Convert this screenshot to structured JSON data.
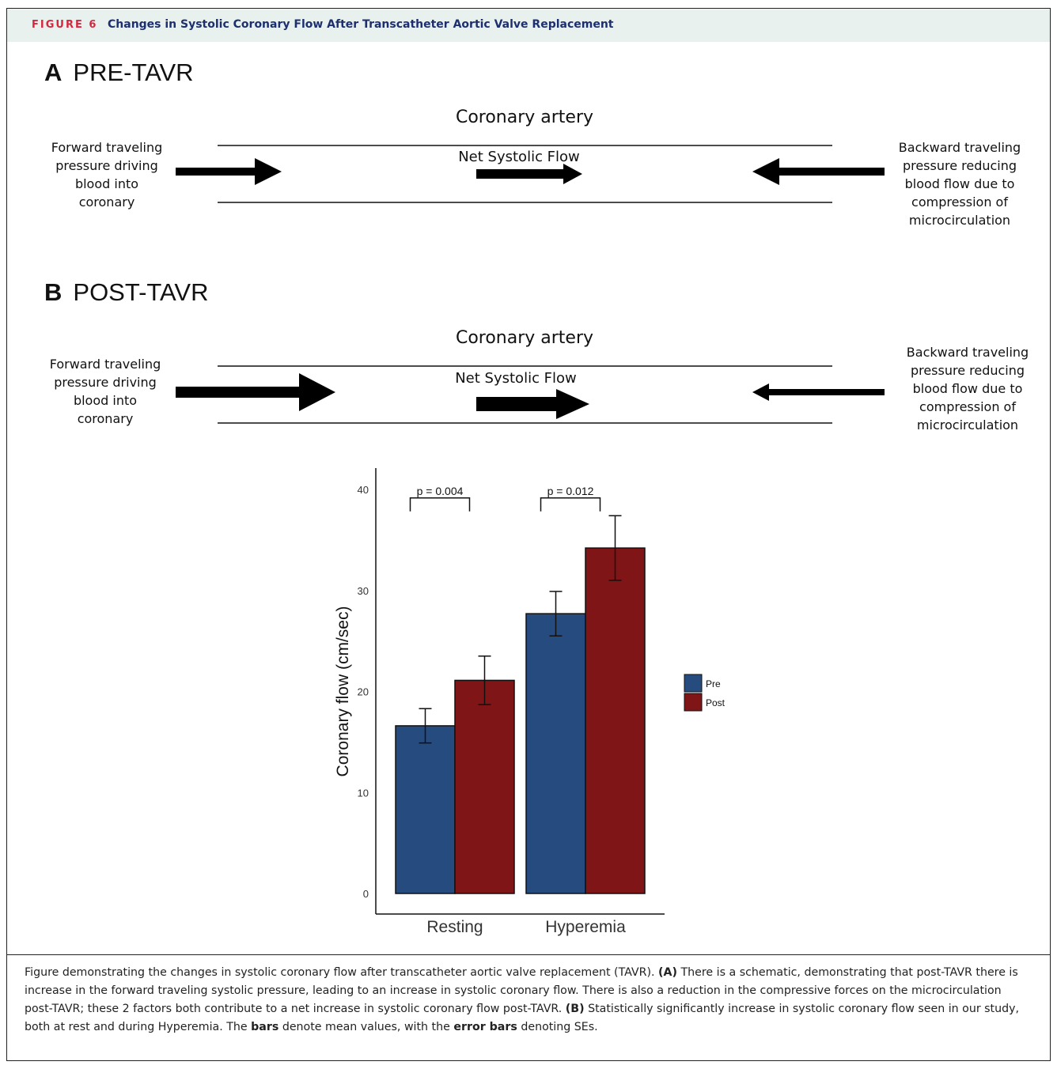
{
  "figure": {
    "label": "FIGURE 6",
    "title": "Changes in Systolic Coronary Flow After Transcatheter Aortic Valve Replacement"
  },
  "panel_a": {
    "letter": "A",
    "title": "PRE-TAVR",
    "artery_label": "Coronary artery",
    "net_flow_label": "Net Systolic Flow",
    "forward_lines": [
      "Forward traveling",
      "pressure driving",
      "blood into",
      "coronary"
    ],
    "backward_lines": [
      "Backward traveling",
      "pressure reducing",
      "blood flow due to",
      "compression of",
      "microcirculation"
    ]
  },
  "panel_b": {
    "letter": "B",
    "title": "POST-TAVR",
    "artery_label": "Coronary artery",
    "net_flow_label": "Net Systolic Flow",
    "forward_lines": [
      "Forward traveling",
      "pressure driving",
      "blood into",
      "coronary"
    ],
    "backward_lines": [
      "Backward traveling",
      "pressure reducing",
      "blood flow due to",
      "compression of",
      "microcirculation"
    ]
  },
  "chart_data": {
    "type": "bar",
    "categories": [
      "Resting",
      "Hyperemia"
    ],
    "ylabel": "Coronary flow (cm/sec)",
    "xlabel": "",
    "ylim": [
      0,
      40
    ],
    "yticks": [
      0,
      10,
      20,
      30,
      40
    ],
    "grid": false,
    "legend_position": "right",
    "series": [
      {
        "name": "Pre",
        "color": "#264b7e",
        "values": [
          16.6,
          27.7
        ],
        "se": [
          1.7,
          2.2
        ]
      },
      {
        "name": "Post",
        "color": "#7f1517",
        "values": [
          21.1,
          34.2
        ],
        "se": [
          2.4,
          3.2
        ]
      }
    ],
    "annotations": [
      {
        "category": "Resting",
        "text": "p = 0.004",
        "y": 39
      },
      {
        "category": "Hyperemia",
        "text": "p = 0.012",
        "y": 39
      }
    ]
  },
  "caption": {
    "intro": "Figure demonstrating the changes in systolic coronary flow after transcatheter aortic valve replacement (TAVR). ",
    "a_marker": "(A)",
    "a_text": " There is a schematic, demonstrating that post-TAVR there is increase in the forward traveling systolic pressure, leading to an increase in systolic coronary flow. There is also a reduction in the compressive forces on the microcirculation post-TAVR; these 2 factors both contribute to a net increase in systolic coronary flow post-TAVR. ",
    "b_marker": "(B)",
    "b_text": " Statistically significantly increase in systolic coronary flow seen in our study, both at rest and during Hyperemia. The ",
    "bars_word": "bars",
    "mid_text": " denote mean values, with the ",
    "error_bars_word": "error bars",
    "end_text": " denoting SEs."
  }
}
